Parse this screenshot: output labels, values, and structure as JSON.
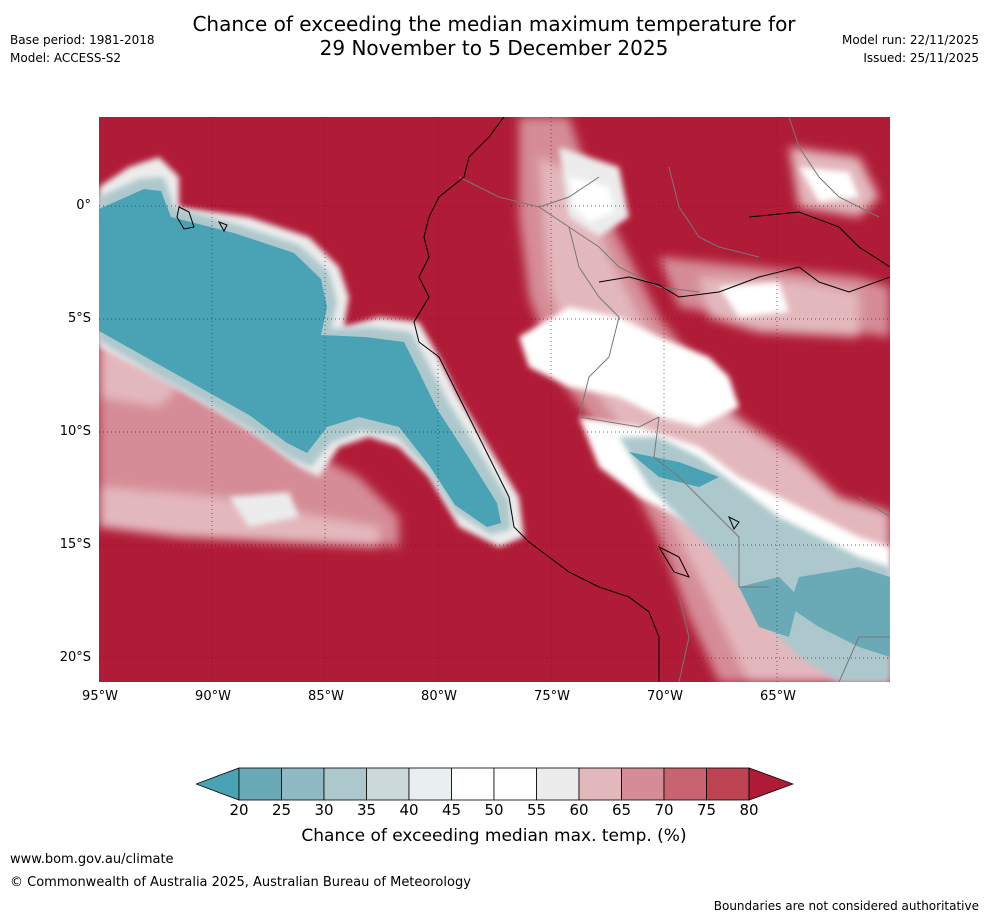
{
  "header": {
    "title_line1": "Chance of exceeding the median maximum temperature for",
    "title_line2": "29 November to 5 December 2025",
    "base_period": "Base period: 1981-2018",
    "model": "Model: ACCESS-S2",
    "model_run": "Model run: 22/11/2025",
    "issued": "Issued: 25/11/2025"
  },
  "map": {
    "lat_labels": [
      "0°",
      "5°S",
      "10°S",
      "15°S",
      "20°S"
    ],
    "lon_labels": [
      "95°W",
      "90°W",
      "85°W",
      "80°W",
      "75°W",
      "70°W",
      "65°W"
    ]
  },
  "colorbar": {
    "ticks": [
      "20",
      "25",
      "30",
      "35",
      "40",
      "45",
      "50",
      "55",
      "60",
      "65",
      "70",
      "75",
      "80"
    ],
    "colors": [
      "#4aa3b4",
      "#6aaab7",
      "#8fb9c3",
      "#adc8cc",
      "#cbd9da",
      "#e9eef0",
      "#ffffff",
      "#ffffff",
      "#ececec",
      "#e3b8bd",
      "#d58c96",
      "#c8646f",
      "#be4453",
      "#b01c37"
    ],
    "label": "Chance of exceeding median max. temp. (%)"
  },
  "footer": {
    "url": "www.bom.gov.au/climate",
    "copyright": "© Commonwealth of Australia 2025, Australian Bureau of Meteorology",
    "note": "Boundaries are not considered authoritative"
  }
}
